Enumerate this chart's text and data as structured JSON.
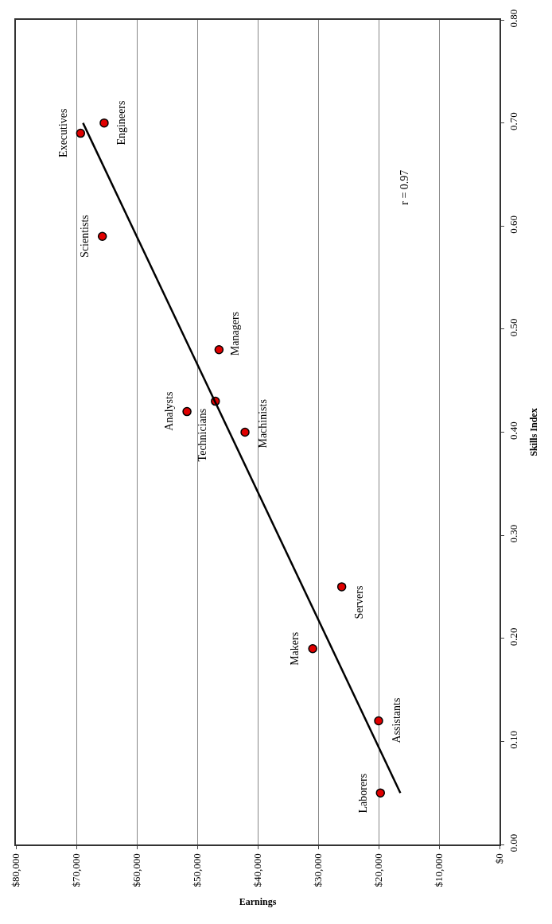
{
  "chart_data": {
    "type": "scatter",
    "xlabel": "Earnings",
    "ylabel": "Skills Index",
    "xlim": [
      80000,
      0
    ],
    "xticks": [
      {
        "value": 80000,
        "label": "$80,000"
      },
      {
        "value": 70000,
        "label": "$70,000"
      },
      {
        "value": 60000,
        "label": "$60,000"
      },
      {
        "value": 50000,
        "label": "$50,000"
      },
      {
        "value": 40000,
        "label": "$40,000"
      },
      {
        "value": 30000,
        "label": "$30,000"
      },
      {
        "value": 20000,
        "label": "$20,000"
      },
      {
        "value": 10000,
        "label": "$10,000"
      },
      {
        "value": 0,
        "label": "$0"
      }
    ],
    "ylim": [
      0,
      0.8
    ],
    "yticks": [
      {
        "value": 0,
        "label": "0.00"
      },
      {
        "value": 0.1,
        "label": "0.10"
      },
      {
        "value": 0.2,
        "label": "0.20"
      },
      {
        "value": 0.3,
        "label": "0.30"
      },
      {
        "value": 0.4,
        "label": "0.40"
      },
      {
        "value": 0.5,
        "label": "0.50"
      },
      {
        "value": 0.6,
        "label": "0.60"
      },
      {
        "value": 0.7,
        "label": "0.70"
      },
      {
        "value": 0.8,
        "label": "0.80"
      }
    ],
    "grid": "x",
    "series": [
      {
        "marker": "circle",
        "color": "#e00000",
        "x": [
          69300,
          65400,
          65700,
          46400,
          51700,
          47000,
          42100,
          26100,
          30900,
          20000,
          19700
        ],
        "values": [
          0.69,
          0.7,
          0.59,
          0.48,
          0.42,
          0.43,
          0.4,
          0.25,
          0.19,
          0.12,
          0.05
        ]
      },
      {
        "type": "line",
        "marker": "none",
        "color": "#000000",
        "x": [
          16400,
          68900
        ],
        "values": [
          0.05,
          0.7
        ]
      }
    ],
    "annotations": [
      {
        "text": "Executives",
        "x": 69300,
        "y": 0.69
      },
      {
        "text": "Engineers",
        "x": 65400,
        "y": 0.7
      },
      {
        "text": "Scientists",
        "x": 65700,
        "y": 0.59
      },
      {
        "text": "Managers",
        "x": 46400,
        "y": 0.48
      },
      {
        "text": "Analysts",
        "x": 51700,
        "y": 0.42
      },
      {
        "text": "Technicians",
        "x": 47000,
        "y": 0.43
      },
      {
        "text": "Machinists",
        "x": 42100,
        "y": 0.4
      },
      {
        "text": "Servers",
        "x": 26100,
        "y": 0.25
      },
      {
        "text": "Makers",
        "x": 30900,
        "y": 0.19
      },
      {
        "text": "Assistants",
        "x": 20000,
        "y": 0.12
      },
      {
        "text": "Laborers",
        "x": 19700,
        "y": 0.05
      },
      "r = 0.97"
    ]
  }
}
